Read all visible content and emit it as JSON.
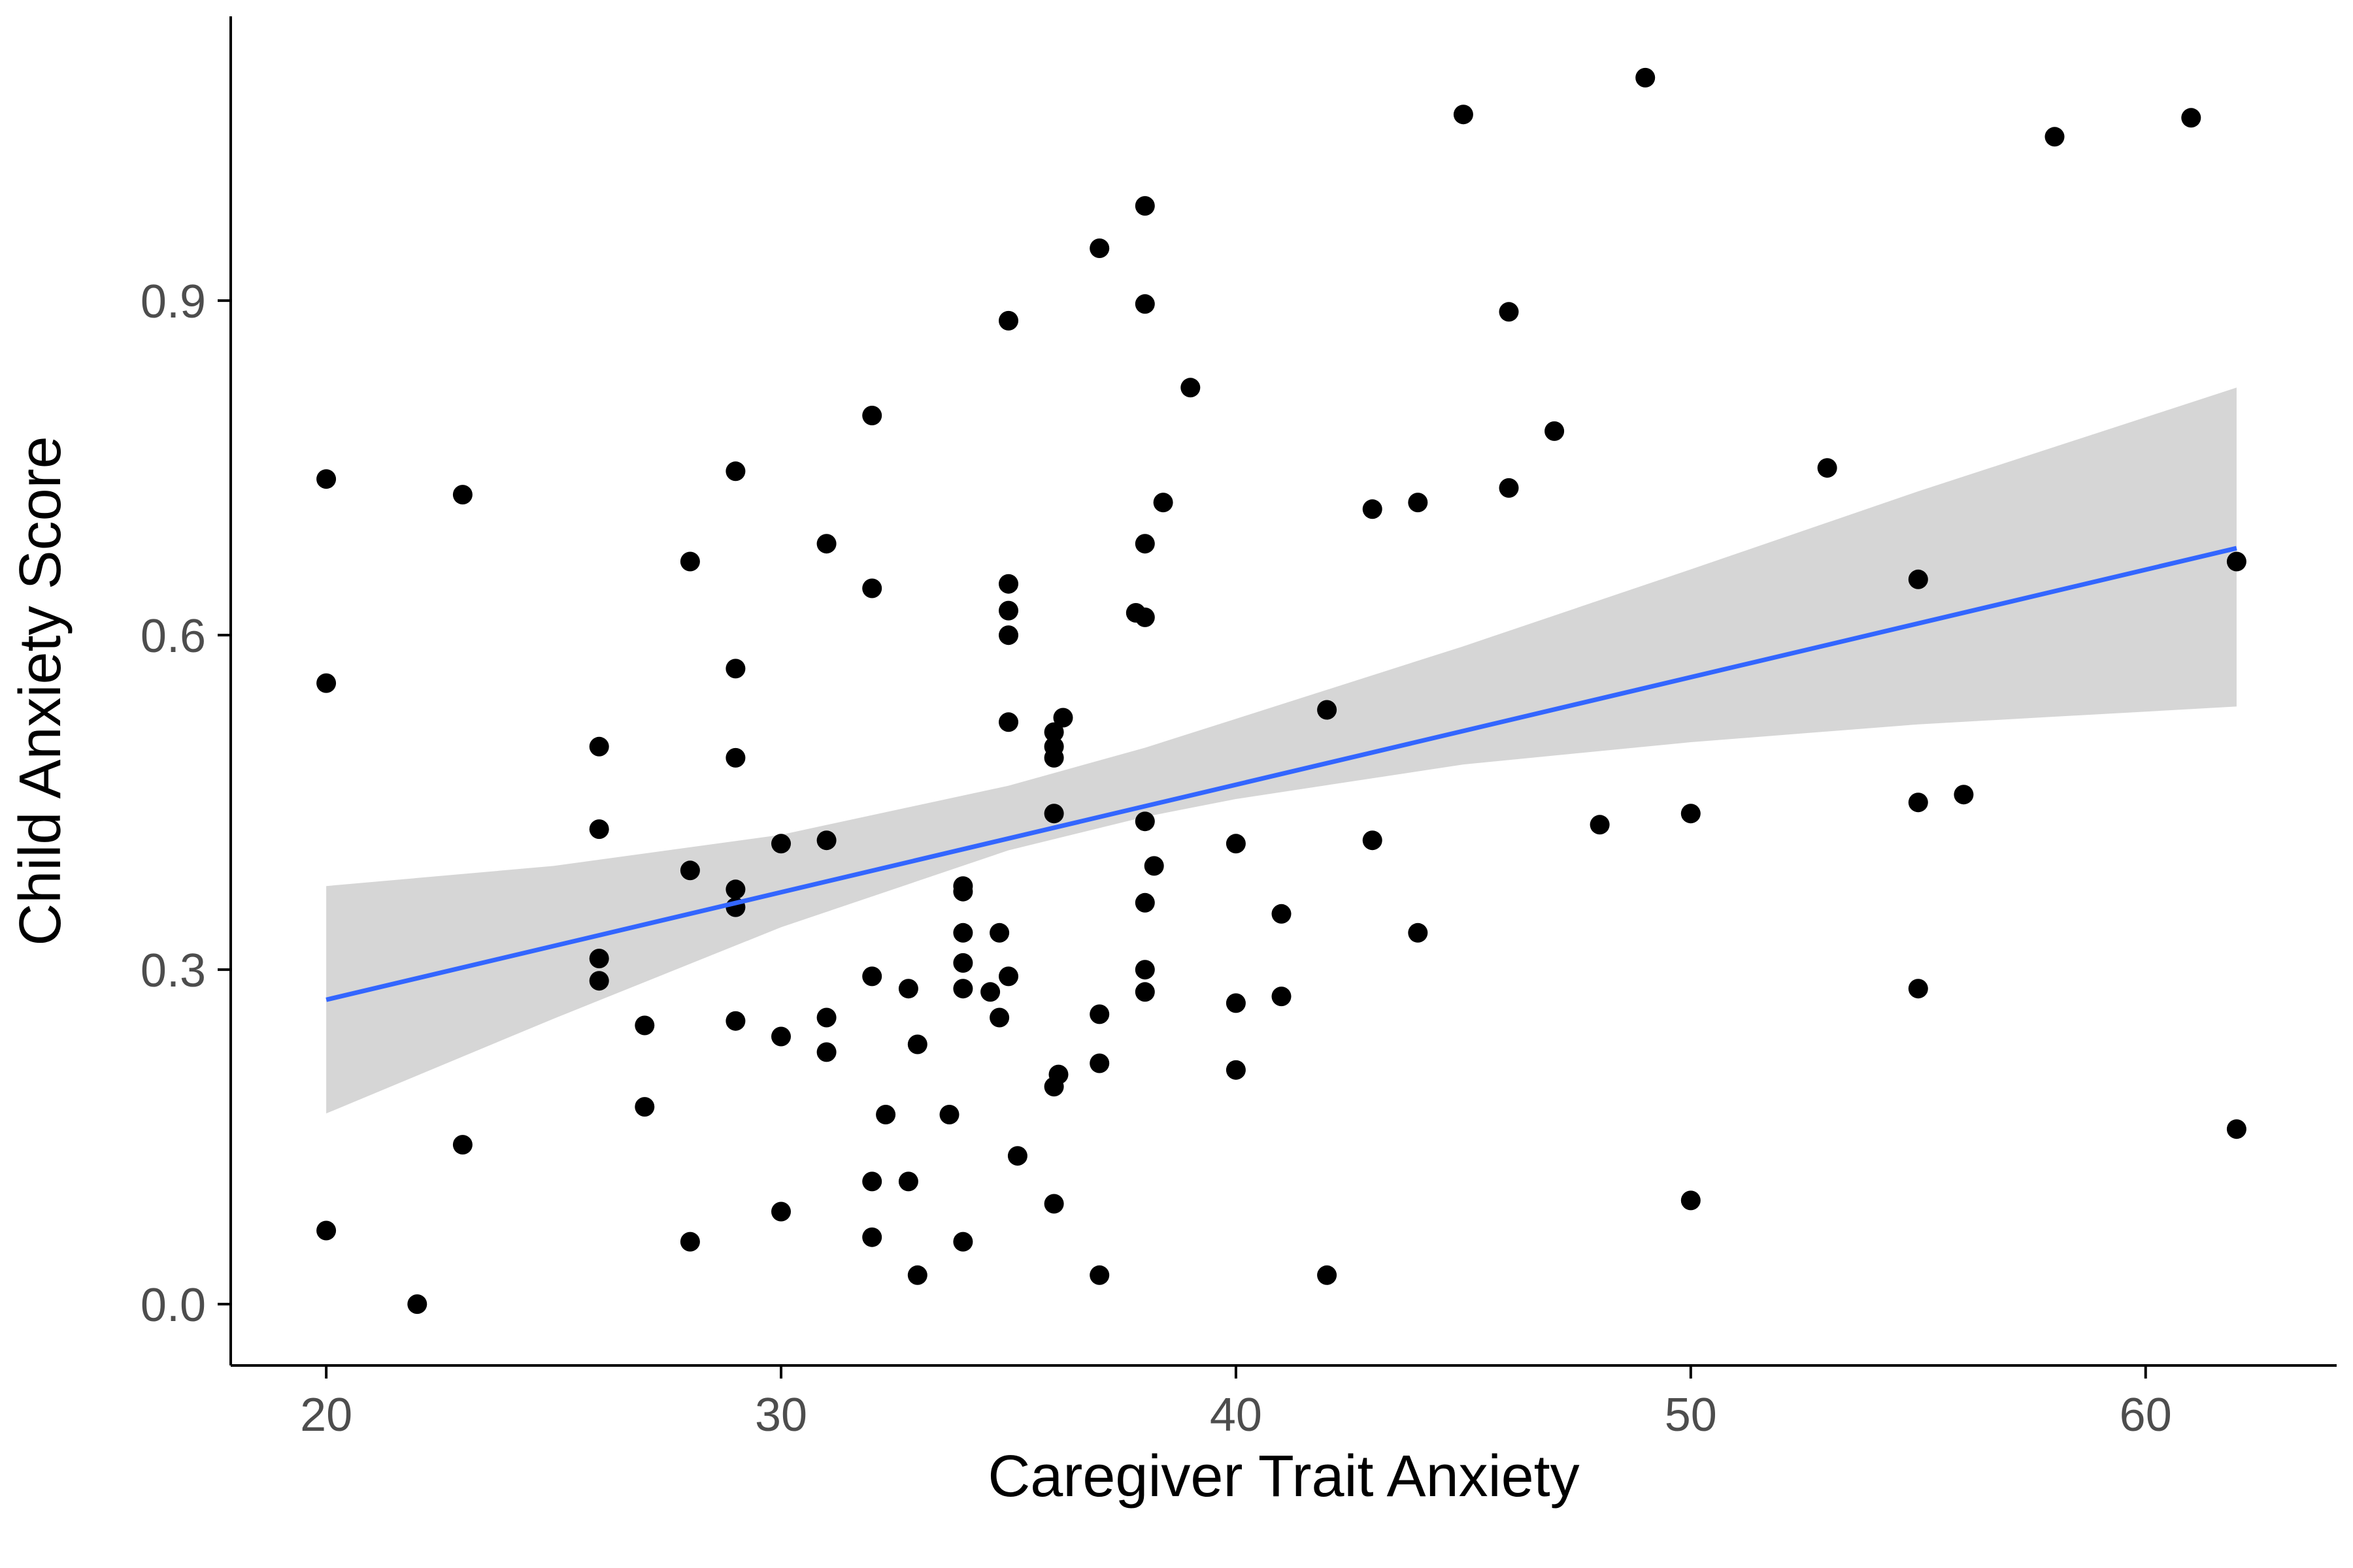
{
  "chart_data": {
    "type": "scatter",
    "title": "",
    "xlabel": "Caregiver Trait Anxiety",
    "ylabel": "Child Anxiety Score",
    "xlim": [
      17.9,
      64.2
    ],
    "ylim": [
      -0.055,
      1.155
    ],
    "x_ticks": [
      20,
      30,
      40,
      50,
      60
    ],
    "x_tick_labels": [
      "20",
      "30",
      "40",
      "50",
      "60"
    ],
    "y_ticks": [
      0.0,
      0.3,
      0.6,
      0.9
    ],
    "y_tick_labels": [
      "0.0",
      "0.3",
      "0.6",
      "0.9"
    ],
    "grid": false,
    "legend": "none",
    "colors": {
      "points": "#000000",
      "fit_line": "#3366ff",
      "confidence_band": "#d3d3d3",
      "axis": "#000000",
      "tick_label": "#4d4d4d"
    },
    "points": [
      {
        "x": 20,
        "y": 0.74
      },
      {
        "x": 20,
        "y": 0.557
      },
      {
        "x": 20,
        "y": 0.066
      },
      {
        "x": 22,
        "y": 0.0
      },
      {
        "x": 23,
        "y": 0.726
      },
      {
        "x": 23,
        "y": 0.143
      },
      {
        "x": 26,
        "y": 0.5
      },
      {
        "x": 26,
        "y": 0.426
      },
      {
        "x": 26,
        "y": 0.31
      },
      {
        "x": 26,
        "y": 0.29
      },
      {
        "x": 27,
        "y": 0.25
      },
      {
        "x": 27,
        "y": 0.177
      },
      {
        "x": 28,
        "y": 0.666
      },
      {
        "x": 28,
        "y": 0.389
      },
      {
        "x": 28,
        "y": 0.056
      },
      {
        "x": 29,
        "y": 0.747
      },
      {
        "x": 29,
        "y": 0.57
      },
      {
        "x": 29,
        "y": 0.49
      },
      {
        "x": 29,
        "y": 0.372
      },
      {
        "x": 29,
        "y": 0.356
      },
      {
        "x": 29,
        "y": 0.254
      },
      {
        "x": 30,
        "y": 0.413
      },
      {
        "x": 30,
        "y": 0.24
      },
      {
        "x": 30,
        "y": 0.083
      },
      {
        "x": 31,
        "y": 0.682
      },
      {
        "x": 31,
        "y": 0.416
      },
      {
        "x": 31,
        "y": 0.257
      },
      {
        "x": 31,
        "y": 0.226
      },
      {
        "x": 32,
        "y": 0.797
      },
      {
        "x": 32,
        "y": 0.642
      },
      {
        "x": 32,
        "y": 0.294
      },
      {
        "x": 32,
        "y": 0.11
      },
      {
        "x": 32,
        "y": 0.06
      },
      {
        "x": 32.3,
        "y": 0.17
      },
      {
        "x": 32.8,
        "y": 0.283
      },
      {
        "x": 32.8,
        "y": 0.11
      },
      {
        "x": 33,
        "y": 0.233
      },
      {
        "x": 33,
        "y": 0.026
      },
      {
        "x": 33.7,
        "y": 0.17
      },
      {
        "x": 34,
        "y": 0.375
      },
      {
        "x": 34,
        "y": 0.37
      },
      {
        "x": 34,
        "y": 0.333
      },
      {
        "x": 34,
        "y": 0.306
      },
      {
        "x": 34,
        "y": 0.283
      },
      {
        "x": 34,
        "y": 0.056
      },
      {
        "x": 34.6,
        "y": 0.28
      },
      {
        "x": 34.8,
        "y": 0.333
      },
      {
        "x": 34.8,
        "y": 0.257
      },
      {
        "x": 35,
        "y": 0.882
      },
      {
        "x": 35,
        "y": 0.646
      },
      {
        "x": 35,
        "y": 0.622
      },
      {
        "x": 35,
        "y": 0.6
      },
      {
        "x": 35,
        "y": 0.522
      },
      {
        "x": 35,
        "y": 0.294
      },
      {
        "x": 35.2,
        "y": 0.133
      },
      {
        "x": 36,
        "y": 0.513
      },
      {
        "x": 36,
        "y": 0.5
      },
      {
        "x": 36,
        "y": 0.49
      },
      {
        "x": 36,
        "y": 0.44
      },
      {
        "x": 36,
        "y": 0.195
      },
      {
        "x": 36,
        "y": 0.09
      },
      {
        "x": 36.1,
        "y": 0.206
      },
      {
        "x": 36.2,
        "y": 0.526
      },
      {
        "x": 37,
        "y": 0.947
      },
      {
        "x": 37,
        "y": 0.26
      },
      {
        "x": 37,
        "y": 0.216
      },
      {
        "x": 37,
        "y": 0.026
      },
      {
        "x": 37.8,
        "y": 0.62
      },
      {
        "x": 38,
        "y": 0.985
      },
      {
        "x": 38,
        "y": 0.897
      },
      {
        "x": 38,
        "y": 0.682
      },
      {
        "x": 38,
        "y": 0.616
      },
      {
        "x": 38,
        "y": 0.433
      },
      {
        "x": 38,
        "y": 0.36
      },
      {
        "x": 38,
        "y": 0.3
      },
      {
        "x": 38,
        "y": 0.28
      },
      {
        "x": 38.2,
        "y": 0.393
      },
      {
        "x": 38.4,
        "y": 0.719
      },
      {
        "x": 39,
        "y": 0.822
      },
      {
        "x": 40,
        "y": 0.413
      },
      {
        "x": 40,
        "y": 0.27
      },
      {
        "x": 40,
        "y": 0.21
      },
      {
        "x": 41,
        "y": 0.35
      },
      {
        "x": 41,
        "y": 0.276
      },
      {
        "x": 42,
        "y": 0.533
      },
      {
        "x": 42,
        "y": 0.026
      },
      {
        "x": 43,
        "y": 0.713
      },
      {
        "x": 43,
        "y": 0.416
      },
      {
        "x": 44,
        "y": 0.719
      },
      {
        "x": 44,
        "y": 0.333
      },
      {
        "x": 45,
        "y": 1.067
      },
      {
        "x": 46,
        "y": 0.89
      },
      {
        "x": 46,
        "y": 0.732
      },
      {
        "x": 47,
        "y": 0.783
      },
      {
        "x": 48,
        "y": 0.43
      },
      {
        "x": 49,
        "y": 1.1
      },
      {
        "x": 50,
        "y": 0.44
      },
      {
        "x": 50,
        "y": 0.093
      },
      {
        "x": 53,
        "y": 0.75
      },
      {
        "x": 55,
        "y": 0.65
      },
      {
        "x": 55,
        "y": 0.45
      },
      {
        "x": 55,
        "y": 0.283
      },
      {
        "x": 56,
        "y": 0.457
      },
      {
        "x": 58,
        "y": 1.047
      },
      {
        "x": 61,
        "y": 1.064
      },
      {
        "x": 62,
        "y": 0.666
      },
      {
        "x": 62,
        "y": 0.157
      }
    ],
    "fit_line": {
      "x": [
        20,
        62
      ],
      "y": [
        0.273,
        0.678
      ]
    },
    "confidence_band": {
      "x": [
        20,
        25,
        30,
        35,
        38,
        40,
        45,
        50,
        55,
        62
      ],
      "lower": [
        0.171,
        0.256,
        0.338,
        0.407,
        0.437,
        0.453,
        0.484,
        0.504,
        0.52,
        0.536
      ],
      "upper": [
        0.375,
        0.393,
        0.421,
        0.465,
        0.499,
        0.525,
        0.59,
        0.659,
        0.729,
        0.822
      ]
    }
  }
}
